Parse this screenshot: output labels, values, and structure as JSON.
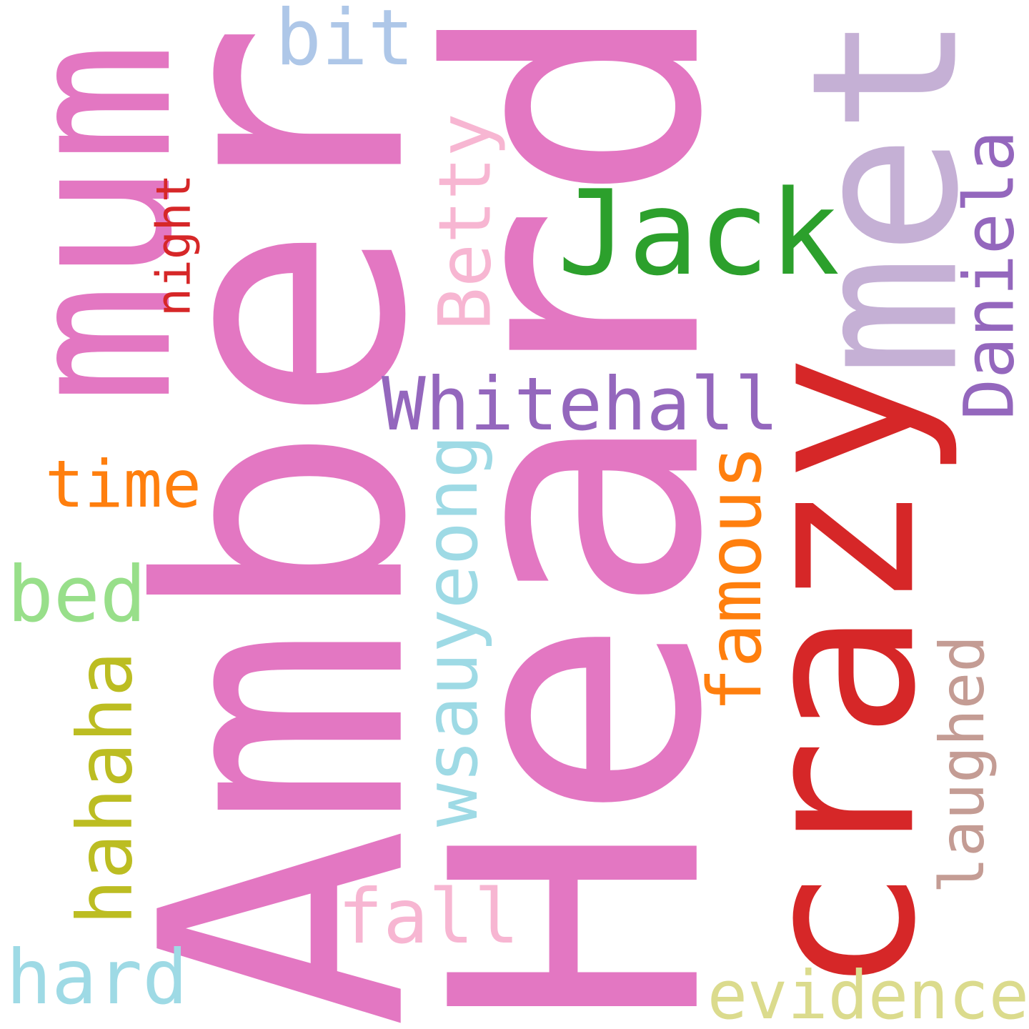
{
  "words": [
    {
      "text": "Amber",
      "color": "#e377c2",
      "rotate": -90
    },
    {
      "text": "Heard",
      "color": "#e377c2",
      "rotate": -90
    },
    {
      "text": "crazy",
      "color": "#d62728",
      "rotate": -90
    },
    {
      "text": "met",
      "color": "#c5b0d5",
      "rotate": -90
    },
    {
      "text": "mum",
      "color": "#e377c2",
      "rotate": -90
    },
    {
      "text": "Jack",
      "color": "#2ca02c",
      "rotate": 0
    },
    {
      "text": "Whitehall",
      "color": "#9467bd",
      "rotate": 0
    },
    {
      "text": "wsauyeong",
      "color": "#9edae5",
      "rotate": -90
    },
    {
      "text": "Daniela",
      "color": "#9467bd",
      "rotate": -90
    },
    {
      "text": "Betty",
      "color": "#f7b6d2",
      "rotate": -90
    },
    {
      "text": "night",
      "color": "#d62728",
      "rotate": -90
    },
    {
      "text": "famous",
      "color": "#ff7f0e",
      "rotate": -90
    },
    {
      "text": "laughed",
      "color": "#c49c94",
      "rotate": -90
    },
    {
      "text": "hahaha",
      "color": "#bcbd22",
      "rotate": -90
    },
    {
      "text": "time",
      "color": "#ff7f0e",
      "rotate": 0
    },
    {
      "text": "bed",
      "color": "#98df8a",
      "rotate": 0
    },
    {
      "text": "bit",
      "color": "#aec7e8",
      "rotate": 0
    },
    {
      "text": "fall",
      "color": "#f7b6d2",
      "rotate": 0
    },
    {
      "text": "hard",
      "color": "#9edae5",
      "rotate": 0
    },
    {
      "text": "evidence",
      "color": "#dbdb8d",
      "rotate": 0
    }
  ]
}
